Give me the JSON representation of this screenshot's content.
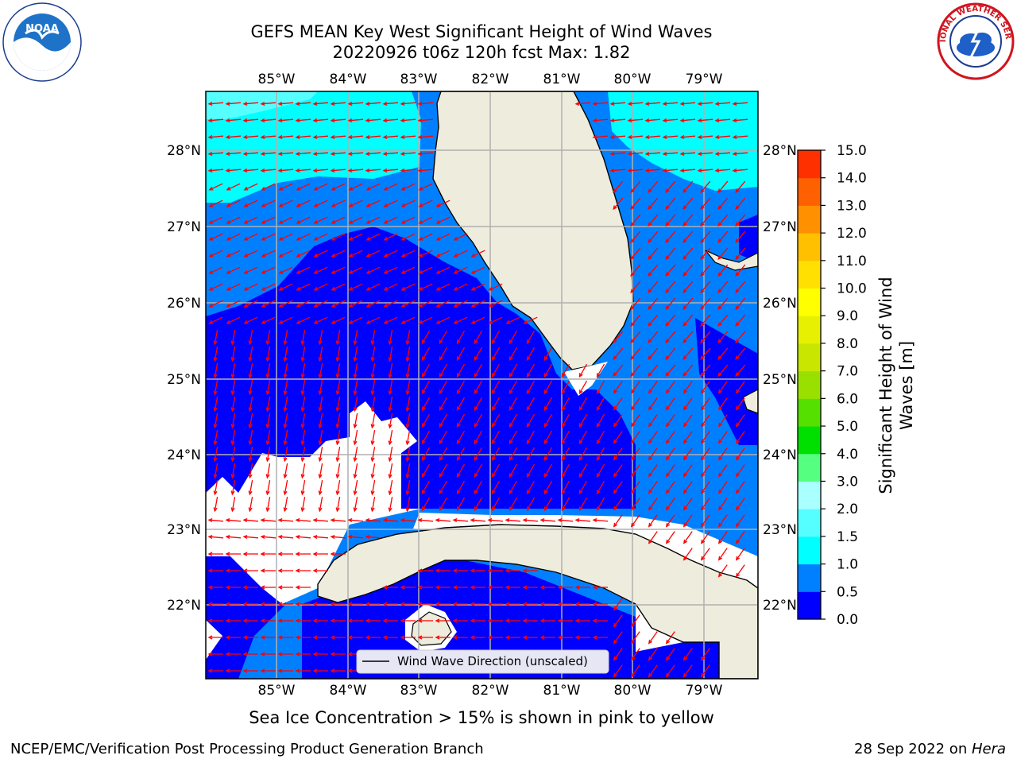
{
  "header": {
    "title_line1": "GEFS MEAN Key West Significant Height of Wind Waves",
    "title_line2": "20220926 t06z 120h fcst   Max: 1.82"
  },
  "logos": {
    "left": "NOAA",
    "right": "NATIONAL WEATHER SERVICE"
  },
  "map": {
    "lon_labels": [
      "85°W",
      "84°W",
      "83°W",
      "82°W",
      "81°W",
      "80°W",
      "79°W"
    ],
    "lat_labels": [
      "28°N",
      "27°N",
      "26°N",
      "25°N",
      "24°N",
      "23°N",
      "22°N"
    ],
    "legend_text": "Wind Wave Direction (unscaled)",
    "arrow_color": "#ff0000",
    "land_color": "#eeecdc"
  },
  "colorbar": {
    "label": "Significant Height of Wind Waves [m]",
    "label_line1": "Significant Height of Wind",
    "label_line2": "Waves [m]",
    "ticks": [
      "15.0",
      "14.0",
      "13.0",
      "12.0",
      "11.0",
      "10.0",
      "9.0",
      "8.0",
      "7.0",
      "6.0",
      "5.0",
      "4.0",
      "3.0",
      "2.0",
      "1.5",
      "1.0",
      "0.5",
      "0.0"
    ],
    "colors_bottom_to_top": [
      "#0000ff",
      "#0080ff",
      "#00ffff",
      "#55ffff",
      "#aaffff",
      "#55ff80",
      "#00e000",
      "#55e000",
      "#99e000",
      "#c8e600",
      "#e6f000",
      "#ffff00",
      "#ffe000",
      "#ffc000",
      "#ff9000",
      "#ff6000",
      "#ff3000"
    ]
  },
  "subtitle": "Sea Ice Concentration > 15% is shown in pink to yellow",
  "footer": {
    "left": "NCEP/EMC/Verification Post Processing Product Generation Branch",
    "right_prefix": "28 Sep 2022 on ",
    "right_host": "Hera"
  }
}
